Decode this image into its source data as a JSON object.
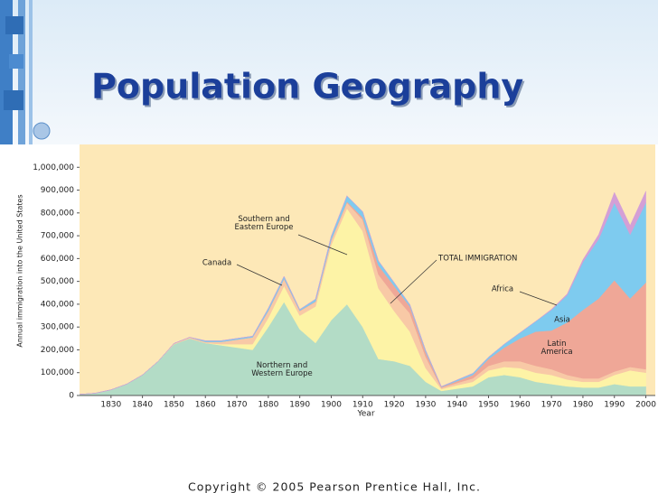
{
  "title": "Population Geography",
  "footer": "Copyright © 2005 Pearson Prentice Hall, Inc.",
  "chart_data": {
    "type": "stacked_area",
    "y_label": "Annual immigration into the United States",
    "x_label": "Year",
    "annotations": [
      "TOTAL IMMIGRATION"
    ],
    "x": [
      1820,
      1825,
      1830,
      1835,
      1840,
      1845,
      1850,
      1855,
      1860,
      1865,
      1870,
      1875,
      1880,
      1885,
      1890,
      1895,
      1900,
      1905,
      1910,
      1915,
      1920,
      1925,
      1930,
      1935,
      1940,
      1945,
      1950,
      1955,
      1960,
      1965,
      1970,
      1975,
      1980,
      1985,
      1990,
      1995,
      2000
    ],
    "xlim": [
      1820,
      2003
    ],
    "xticks": [
      1830,
      1840,
      1850,
      1860,
      1870,
      1880,
      1890,
      1900,
      1910,
      1920,
      1930,
      1940,
      1950,
      1960,
      1970,
      1980,
      1990,
      2000
    ],
    "ylim": [
      0,
      1100000
    ],
    "yticks": [
      0,
      {
        "value": 100000,
        "label": "100,000"
      },
      {
        "value": 200000,
        "label": "200,000"
      },
      {
        "value": 300000,
        "label": "300,000"
      },
      {
        "value": 400000,
        "label": "400,000"
      },
      {
        "value": 500000,
        "label": "500,000"
      },
      {
        "value": 600000,
        "label": "600,000"
      },
      {
        "value": 700000,
        "label": "700,000"
      },
      {
        "value": 800000,
        "label": "800,000"
      },
      {
        "value": 900000,
        "label": "900,000"
      },
      {
        "value": 1000000,
        "label": "1,000,000"
      }
    ],
    "series": [
      {
        "name": "Northern and Western Europe",
        "color": "#b3dcc6",
        "values": [
          5000,
          10000,
          25000,
          50000,
          90000,
          150000,
          225000,
          250000,
          230000,
          220000,
          210000,
          200000,
          300000,
          410000,
          290000,
          230000,
          330000,
          400000,
          300000,
          160000,
          150000,
          130000,
          60000,
          20000,
          30000,
          40000,
          80000,
          90000,
          80000,
          60000,
          50000,
          40000,
          35000,
          35000,
          50000,
          40000,
          40000
        ]
      },
      {
        "name": "Southern and Eastern Europe",
        "color": "#fdf3a6",
        "values": [
          0,
          0,
          0,
          0,
          0,
          0,
          0,
          0,
          0,
          5000,
          15000,
          25000,
          40000,
          70000,
          60000,
          160000,
          330000,
          420000,
          420000,
          310000,
          220000,
          150000,
          60000,
          8000,
          15000,
          20000,
          30000,
          35000,
          40000,
          40000,
          40000,
          30000,
          25000,
          25000,
          40000,
          70000,
          60000
        ]
      },
      {
        "name": "Canada",
        "color": "#f8c9a6",
        "values": [
          0,
          0,
          0,
          0,
          0,
          0,
          3000,
          5000,
          5000,
          10000,
          20000,
          30000,
          30000,
          30000,
          20000,
          20000,
          20000,
          25000,
          50000,
          60000,
          70000,
          80000,
          50000,
          6000,
          10000,
          15000,
          20000,
          25000,
          30000,
          30000,
          25000,
          20000,
          15000,
          15000,
          15000,
          15000,
          15000
        ]
      },
      {
        "name": "Latin America",
        "color": "#efa797",
        "values": [
          0,
          0,
          0,
          0,
          0,
          0,
          0,
          0,
          0,
          0,
          0,
          0,
          2000,
          2000,
          2000,
          2000,
          3000,
          5000,
          10000,
          40000,
          40000,
          30000,
          20000,
          3000,
          8000,
          15000,
          30000,
          60000,
          100000,
          150000,
          170000,
          230000,
          300000,
          350000,
          400000,
          300000,
          380000
        ]
      },
      {
        "name": "Asia",
        "color": "#7ecbef",
        "values": [
          0,
          0,
          0,
          0,
          0,
          0,
          0,
          0,
          5000,
          5000,
          5000,
          5000,
          10000,
          10000,
          5000,
          10000,
          15000,
          25000,
          25000,
          20000,
          15000,
          8000,
          8000,
          2000,
          5000,
          7000,
          8000,
          15000,
          25000,
          45000,
          90000,
          120000,
          210000,
          260000,
          340000,
          280000,
          350000
        ]
      },
      {
        "name": "Africa",
        "color": "#d49fd6",
        "values": [
          0,
          0,
          0,
          0,
          0,
          0,
          0,
          0,
          0,
          0,
          0,
          0,
          0,
          0,
          0,
          0,
          0,
          0,
          0,
          0,
          0,
          0,
          0,
          0,
          0,
          0,
          0,
          0,
          0,
          0,
          3000,
          5000,
          10000,
          20000,
          45000,
          40000,
          50000
        ]
      }
    ]
  }
}
